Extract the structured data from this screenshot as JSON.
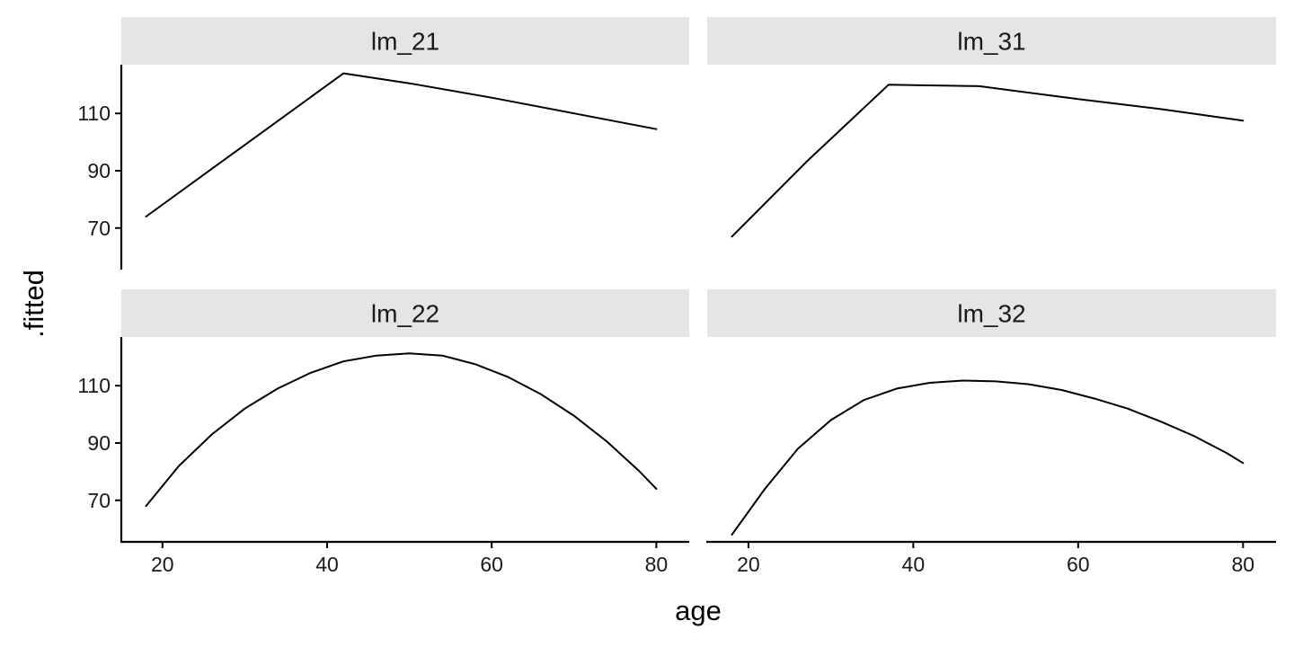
{
  "chart_data": {
    "type": "line",
    "layout": "facet-grid",
    "xlabel": "age",
    "ylabel": ".fitted",
    "x_ticks": [
      20,
      40,
      60,
      80
    ],
    "y_ticks": [
      70,
      90,
      110
    ],
    "xlim": [
      15,
      84
    ],
    "ylim": [
      55.5,
      127
    ],
    "panels": [
      {
        "title": "lm_21",
        "x": [
          18,
          30,
          42,
          50,
          60,
          70,
          80
        ],
        "y": [
          74,
          99,
          124,
          120.5,
          115.5,
          110,
          104.5
        ]
      },
      {
        "title": "lm_31",
        "x": [
          18,
          27,
          37,
          48,
          60,
          70,
          80
        ],
        "y": [
          67,
          93,
          120,
          119.5,
          115,
          111.5,
          107.5
        ]
      },
      {
        "title": "lm_22",
        "x": [
          18,
          22,
          26,
          30,
          34,
          38,
          42,
          46,
          50,
          54,
          58,
          62,
          66,
          70,
          74,
          78,
          80
        ],
        "y": [
          68,
          82,
          93,
          102,
          109,
          114.5,
          118.5,
          120.5,
          121.3,
          120.5,
          117.5,
          113,
          107,
          99.5,
          90.5,
          80,
          74
        ]
      },
      {
        "title": "lm_32",
        "x": [
          18,
          22,
          26,
          30,
          34,
          38,
          42,
          46,
          50,
          54,
          58,
          62,
          66,
          70,
          74,
          78,
          80
        ],
        "y": [
          58,
          74,
          88,
          98,
          105,
          109,
          111,
          111.8,
          111.5,
          110.5,
          108.5,
          105.5,
          102,
          97.5,
          92.5,
          86.5,
          83
        ]
      }
    ]
  }
}
